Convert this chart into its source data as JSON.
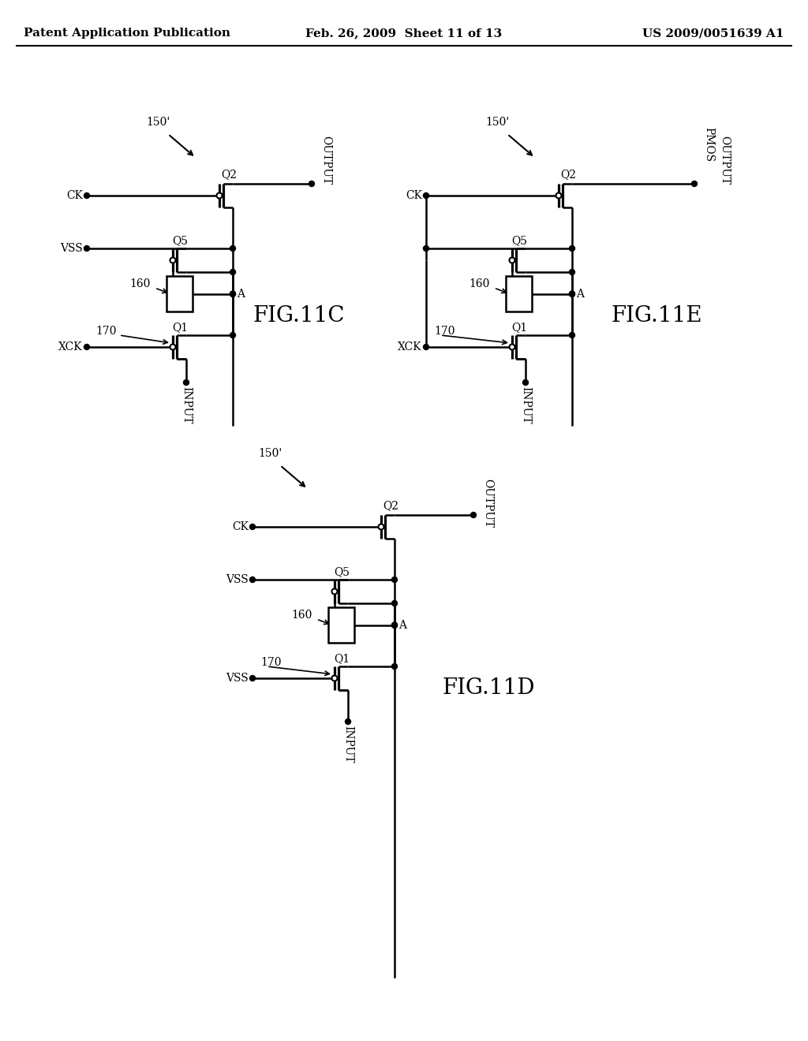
{
  "title_left": "Patent Application Publication",
  "title_mid": "Feb. 26, 2009  Sheet 11 of 13",
  "title_right": "US 2009/0051639 A1",
  "bg_color": "#ffffff",
  "line_color": "#000000",
  "fig11c": {
    "label": "FIG.11C",
    "arrow_label": "150'",
    "ck_label": "CK",
    "vss_label": "VSS",
    "xck_label": "XCK",
    "input_label": "INPUT",
    "output_label": "OUTPUT",
    "q1_label": "Q1",
    "q2_label": "Q2",
    "q5_label": "Q5",
    "a_label": "A",
    "ref160": "160",
    "ref170": "170"
  },
  "fig11d": {
    "label": "FIG.11D",
    "arrow_label": "150'",
    "ck_label": "CK",
    "vss_label": "VSS",
    "vss2_label": "VSS",
    "input_label": "INPUT",
    "output_label": "OUTPUT",
    "q1_label": "Q1",
    "q2_label": "Q2",
    "q5_label": "Q5",
    "a_label": "A",
    "ref160": "160",
    "ref170": "170"
  },
  "fig11e": {
    "label": "FIG.11E",
    "arrow_label": "150'",
    "ck_label": "CK",
    "xck_label": "XCK",
    "input_label": "INPUT",
    "output_label": "OUTPUT",
    "pmos_label": "PMOS",
    "q1_label": "Q1",
    "q2_label": "Q2",
    "q5_label": "Q5",
    "a_label": "A",
    "ref160": "160",
    "ref170": "170"
  }
}
